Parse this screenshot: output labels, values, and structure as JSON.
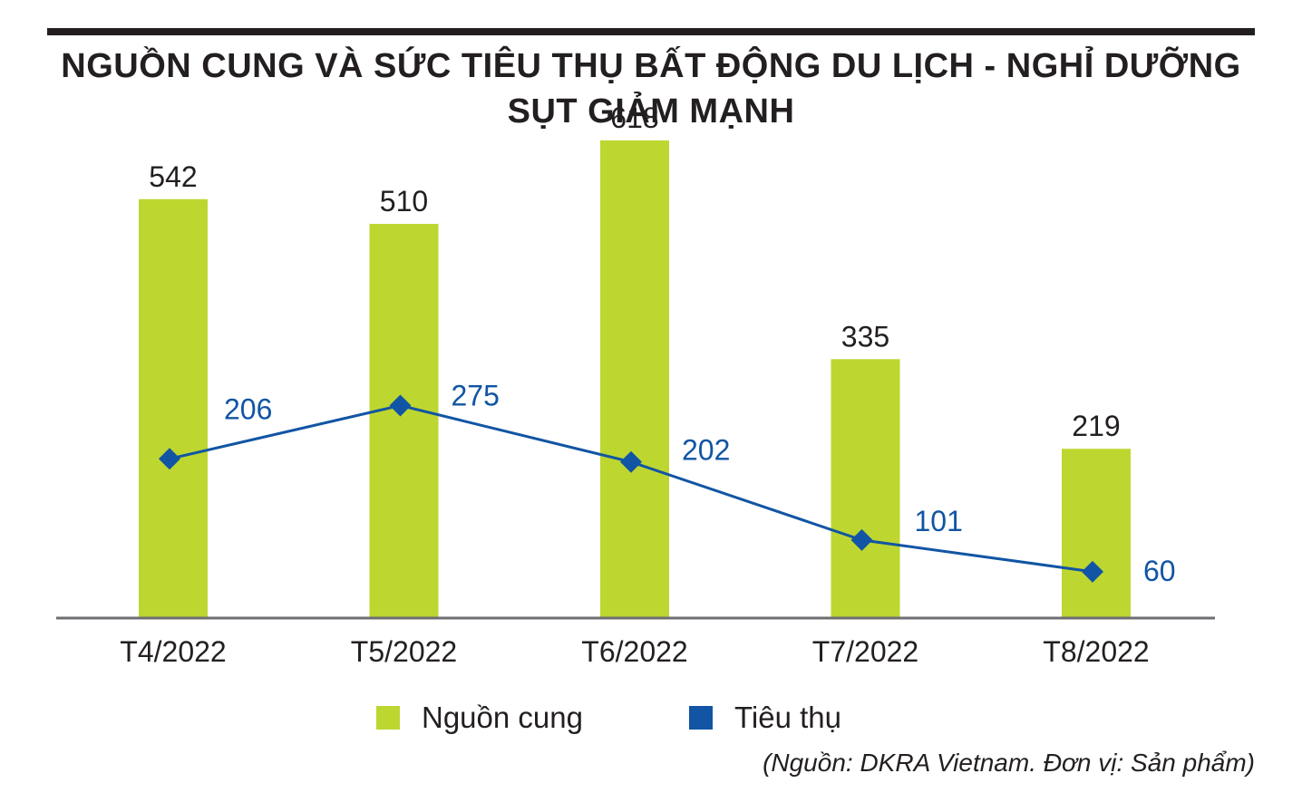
{
  "title": {
    "line1": "NGUỒN CUNG VÀ SỨC TIÊU THỤ BẤT ĐỘNG DU LỊCH - NGHỈ DƯỠNG",
    "line2": "SỤT GIẢM MẠNH"
  },
  "chart_data": {
    "type": "bar",
    "categories": [
      "T4/2022",
      "T5/2022",
      "T6/2022",
      "T7/2022",
      "T8/2022"
    ],
    "series": [
      {
        "name": "Nguồn cung",
        "type": "bar",
        "color": "#bed630",
        "values": [
          542,
          510,
          618,
          335,
          219
        ]
      },
      {
        "name": "Tiêu thụ",
        "type": "line",
        "color": "#1155a4",
        "values": [
          206,
          275,
          202,
          101,
          60
        ]
      }
    ],
    "ylim": [
      0,
      700
    ],
    "grid": false,
    "legend": "bottom-center"
  },
  "legend": {
    "items": [
      {
        "label": "Nguồn cung",
        "color": "#bed630"
      },
      {
        "label": "Tiêu thụ",
        "color": "#1155a4"
      }
    ]
  },
  "source": "(Nguồn: DKRA Vietnam. Đơn vị: Sản phẩm)"
}
